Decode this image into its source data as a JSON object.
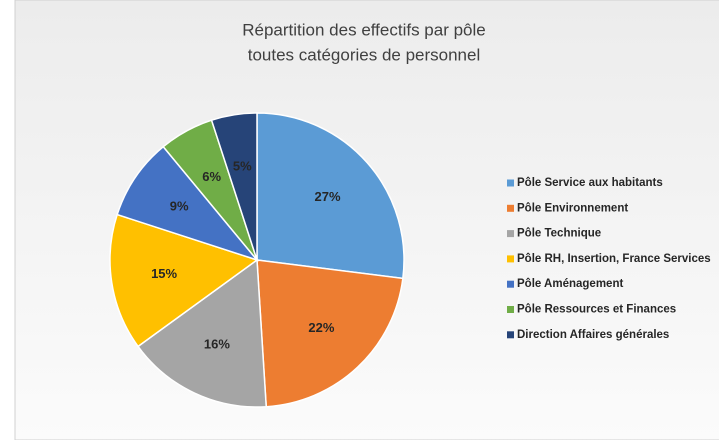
{
  "chart_data": {
    "type": "pie",
    "title": "Répartition des effectifs par pôle",
    "subtitle": "toutes catégories de personnel",
    "categories": [
      "Pôle Service aux habitants",
      "Pôle Environnement",
      "Pôle Technique",
      "Pôle RH, Insertion, France Services",
      "Pôle Aménagement",
      "Pôle Ressources et Finances",
      "Direction Affaires générales"
    ],
    "values": [
      27,
      22,
      16,
      15,
      9,
      6,
      5
    ],
    "value_labels": [
      "27%",
      "22%",
      "16%",
      "15%",
      "9%",
      "6%",
      "5%"
    ],
    "colors": [
      "#5b9bd5",
      "#ed7d31",
      "#a5a5a5",
      "#ffc000",
      "#4472c4",
      "#70ad47",
      "#264478"
    ],
    "legend": "right"
  }
}
